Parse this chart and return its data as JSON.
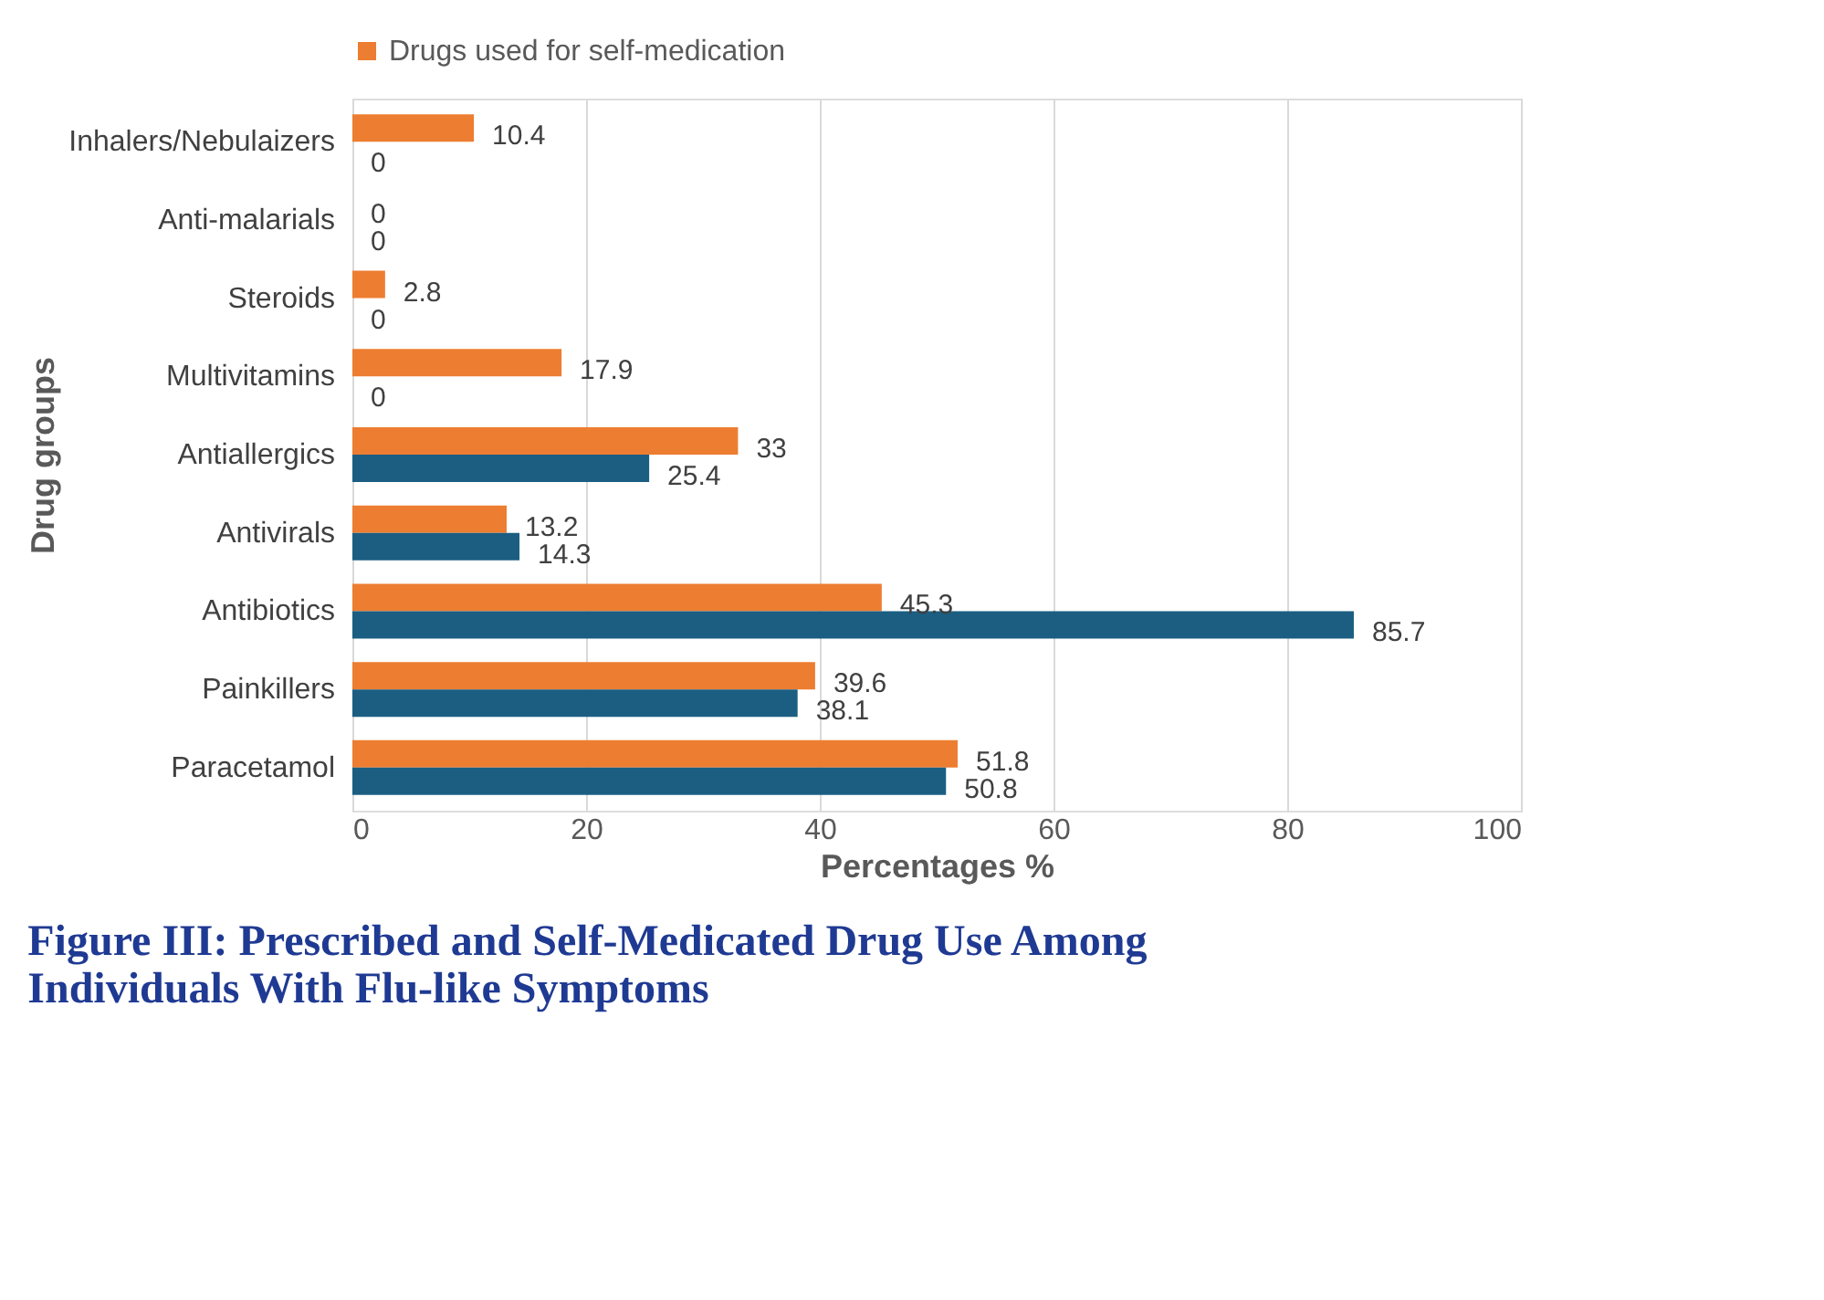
{
  "chart_data": {
    "type": "bar",
    "orientation": "horizontal",
    "xlabel": "Percentages %",
    "ylabel": "Drug groups",
    "categories": [
      "Inhalers/Nebulaizers",
      "Anti-malarials",
      "Steroids",
      "Multivitamins",
      "Antiallergics",
      "Antivirals",
      "Antibiotics",
      "Painkillers",
      "Paracetamol"
    ],
    "series": [
      {
        "name": "Drugs used for self-medication",
        "color": "#ed7d31",
        "values": [
          10.4,
          0,
          2.8,
          17.9,
          33,
          13.2,
          45.3,
          39.6,
          51.8
        ]
      },
      {
        "color": "#1b5e82",
        "values": [
          0,
          0,
          0,
          0,
          25.4,
          14.3,
          85.7,
          38.1,
          50.8
        ]
      }
    ],
    "xlim": [
      0,
      100
    ],
    "xticks": [
      0,
      20,
      40,
      60,
      80,
      100
    ],
    "grid": "x",
    "legend": "top",
    "data_labels": true,
    "annotations": [
      "Figure III: Prescribed and Self-Medicated Drug Use Among Individuals With Flu-like Symptoms"
    ]
  }
}
